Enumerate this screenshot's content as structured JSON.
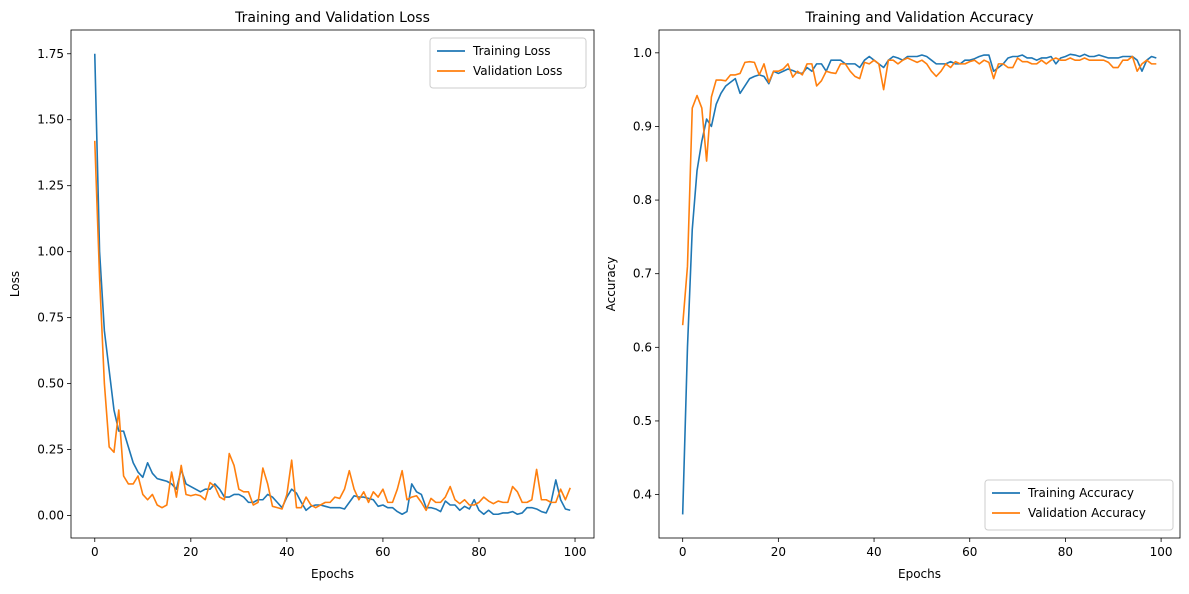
{
  "colors": {
    "training": "#1f77b4",
    "validation": "#ff7f0e"
  },
  "chart_data": [
    {
      "type": "line",
      "title": "Training and Validation Loss",
      "xlabel": "Epochs",
      "ylabel": "Loss",
      "xlim": [
        -4.95,
        103.95
      ],
      "ylim": [
        -0.085,
        1.84
      ],
      "xticks": [
        0,
        20,
        40,
        60,
        80,
        100
      ],
      "yticks": [
        0.0,
        0.25,
        0.5,
        0.75,
        1.0,
        1.25,
        1.5,
        1.75
      ],
      "ytick_labels": [
        "0.00",
        "0.25",
        "0.50",
        "0.75",
        "1.00",
        "1.25",
        "1.50",
        "1.75"
      ],
      "xtick_labels": [
        "0",
        "20",
        "40",
        "60",
        "80",
        "100"
      ],
      "legend_position": "top-right",
      "grid": false,
      "series": [
        {
          "name": "Training Loss",
          "values": [
            1.75,
            1.0,
            0.7,
            0.55,
            0.4,
            0.32,
            0.32,
            0.26,
            0.2,
            0.165,
            0.145,
            0.2,
            0.16,
            0.14,
            0.135,
            0.13,
            0.12,
            0.1,
            0.175,
            0.12,
            0.11,
            0.1,
            0.09,
            0.1,
            0.1,
            0.12,
            0.1,
            0.07,
            0.07,
            0.08,
            0.08,
            0.07,
            0.05,
            0.05,
            0.06,
            0.06,
            0.08,
            0.07,
            0.05,
            0.03,
            0.07,
            0.1,
            0.085,
            0.05,
            0.02,
            0.035,
            0.04,
            0.04,
            0.035,
            0.03,
            0.03,
            0.03,
            0.025,
            0.05,
            0.075,
            0.07,
            0.07,
            0.065,
            0.06,
            0.035,
            0.04,
            0.03,
            0.03,
            0.015,
            0.005,
            0.015,
            0.12,
            0.09,
            0.08,
            0.03,
            0.03,
            0.025,
            0.015,
            0.055,
            0.04,
            0.04,
            0.02,
            0.035,
            0.025,
            0.06,
            0.02,
            0.005,
            0.02,
            0.005,
            0.005,
            0.01,
            0.01,
            0.015,
            0.005,
            0.01,
            0.03,
            0.03,
            0.025,
            0.015,
            0.01,
            0.05,
            0.135,
            0.06,
            0.025,
            0.02
          ]
        },
        {
          "name": "Validation Loss",
          "values": [
            1.42,
            0.9,
            0.5,
            0.26,
            0.24,
            0.4,
            0.15,
            0.12,
            0.12,
            0.15,
            0.08,
            0.06,
            0.08,
            0.04,
            0.03,
            0.04,
            0.165,
            0.07,
            0.19,
            0.08,
            0.075,
            0.08,
            0.075,
            0.06,
            0.125,
            0.11,
            0.07,
            0.06,
            0.235,
            0.19,
            0.1,
            0.09,
            0.09,
            0.04,
            0.05,
            0.18,
            0.12,
            0.035,
            0.03,
            0.025,
            0.08,
            0.21,
            0.03,
            0.03,
            0.07,
            0.04,
            0.03,
            0.04,
            0.05,
            0.05,
            0.07,
            0.065,
            0.1,
            0.17,
            0.1,
            0.06,
            0.09,
            0.05,
            0.09,
            0.07,
            0.1,
            0.05,
            0.05,
            0.1,
            0.17,
            0.06,
            0.07,
            0.075,
            0.05,
            0.02,
            0.065,
            0.05,
            0.05,
            0.07,
            0.11,
            0.06,
            0.045,
            0.06,
            0.04,
            0.04,
            0.05,
            0.07,
            0.055,
            0.045,
            0.055,
            0.05,
            0.05,
            0.11,
            0.09,
            0.05,
            0.05,
            0.06,
            0.175,
            0.06,
            0.06,
            0.05,
            0.05,
            0.1,
            0.06,
            0.105
          ]
        }
      ]
    },
    {
      "type": "line",
      "title": "Training and Validation Accuracy",
      "xlabel": "Epochs",
      "ylabel": "Accuracy",
      "xlim": [
        -4.95,
        103.95
      ],
      "ylim": [
        0.341,
        1.031
      ],
      "xticks": [
        0,
        20,
        40,
        60,
        80,
        100
      ],
      "yticks": [
        0.4,
        0.5,
        0.6,
        0.7,
        0.8,
        0.9,
        1.0
      ],
      "ytick_labels": [
        "0.4",
        "0.5",
        "0.6",
        "0.7",
        "0.8",
        "0.9",
        "1.0"
      ],
      "xtick_labels": [
        "0",
        "20",
        "40",
        "60",
        "80",
        "100"
      ],
      "legend_position": "bottom-right",
      "grid": false,
      "series": [
        {
          "name": "Training Accuracy",
          "values": [
            0.373,
            0.6,
            0.76,
            0.84,
            0.88,
            0.91,
            0.9,
            0.93,
            0.945,
            0.955,
            0.96,
            0.965,
            0.945,
            0.955,
            0.965,
            0.968,
            0.97,
            0.968,
            0.958,
            0.975,
            0.972,
            0.975,
            0.978,
            0.976,
            0.973,
            0.972,
            0.98,
            0.975,
            0.985,
            0.985,
            0.975,
            0.99,
            0.99,
            0.99,
            0.985,
            0.985,
            0.985,
            0.98,
            0.99,
            0.995,
            0.99,
            0.985,
            0.98,
            0.99,
            0.995,
            0.993,
            0.99,
            0.995,
            0.995,
            0.995,
            0.997,
            0.995,
            0.99,
            0.985,
            0.985,
            0.985,
            0.988,
            0.985,
            0.985,
            0.99,
            0.99,
            0.992,
            0.995,
            0.997,
            0.997,
            0.975,
            0.98,
            0.985,
            0.993,
            0.995,
            0.995,
            0.997,
            0.993,
            0.993,
            0.99,
            0.993,
            0.993,
            0.995,
            0.985,
            0.993,
            0.995,
            0.998,
            0.997,
            0.995,
            0.998,
            0.995,
            0.995,
            0.997,
            0.995,
            0.993,
            0.993,
            0.993,
            0.995,
            0.995,
            0.995,
            0.99,
            0.975,
            0.99,
            0.995,
            0.993
          ]
        },
        {
          "name": "Validation Accuracy",
          "values": [
            0.63,
            0.71,
            0.925,
            0.942,
            0.925,
            0.853,
            0.94,
            0.963,
            0.963,
            0.962,
            0.97,
            0.97,
            0.972,
            0.987,
            0.988,
            0.987,
            0.97,
            0.985,
            0.96,
            0.975,
            0.975,
            0.978,
            0.985,
            0.967,
            0.975,
            0.97,
            0.985,
            0.985,
            0.955,
            0.962,
            0.975,
            0.973,
            0.972,
            0.985,
            0.985,
            0.975,
            0.968,
            0.965,
            0.987,
            0.985,
            0.99,
            0.985,
            0.95,
            0.99,
            0.99,
            0.985,
            0.99,
            0.993,
            0.99,
            0.987,
            0.99,
            0.985,
            0.975,
            0.968,
            0.975,
            0.985,
            0.98,
            0.988,
            0.985,
            0.985,
            0.988,
            0.99,
            0.985,
            0.99,
            0.987,
            0.965,
            0.985,
            0.985,
            0.98,
            0.98,
            0.993,
            0.988,
            0.988,
            0.985,
            0.985,
            0.99,
            0.985,
            0.99,
            0.993,
            0.99,
            0.99,
            0.993,
            0.99,
            0.99,
            0.993,
            0.99,
            0.99,
            0.99,
            0.99,
            0.987,
            0.98,
            0.98,
            0.99,
            0.99,
            0.995,
            0.975,
            0.985,
            0.99,
            0.985,
            0.985
          ]
        }
      ]
    }
  ]
}
